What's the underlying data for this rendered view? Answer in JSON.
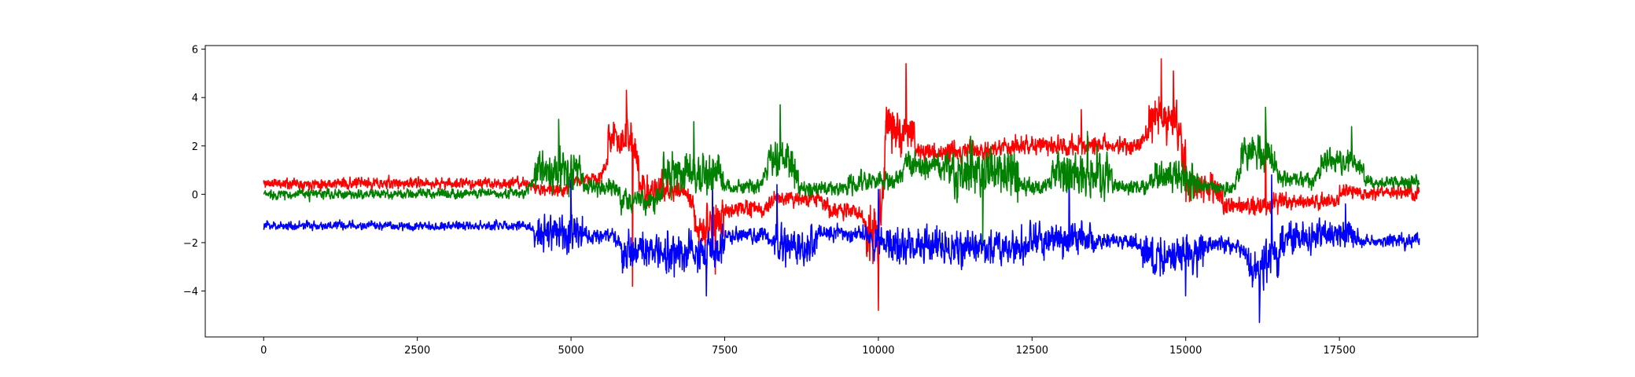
{
  "chart_data": {
    "type": "line",
    "title": "",
    "xlabel": "",
    "ylabel": "",
    "xlim": [
      -950,
      19750
    ],
    "ylim": [
      -5.9,
      6.15
    ],
    "grid": false,
    "legend": "none",
    "x_ticks": [
      {
        "value": 0,
        "label": "0"
      },
      {
        "value": 2500,
        "label": "2500"
      },
      {
        "value": 5000,
        "label": "5000"
      },
      {
        "value": 7500,
        "label": "7500"
      },
      {
        "value": 10000,
        "label": "10000"
      },
      {
        "value": 12500,
        "label": "12500"
      },
      {
        "value": 15000,
        "label": "15000"
      },
      {
        "value": 17500,
        "label": "17500"
      }
    ],
    "y_ticks": [
      {
        "value": -4,
        "label": "−4"
      },
      {
        "value": -2,
        "label": "−2"
      },
      {
        "value": 0,
        "label": "0"
      },
      {
        "value": 2,
        "label": "2"
      },
      {
        "value": 4,
        "label": "4"
      },
      {
        "value": 6,
        "label": "6"
      }
    ],
    "x_range": [
      0,
      18800
    ],
    "series": [
      {
        "color": "#ff0000",
        "seed": 11,
        "segments": [
          {
            "x": [
              0,
              2500
            ],
            "mean": 0.45,
            "noise": 0.28
          },
          {
            "x": [
              2500,
              4400
            ],
            "mean": 0.45,
            "noise": 0.26
          },
          {
            "x": [
              4400,
              5000
            ],
            "mean": 0.2,
            "noise": 0.35
          },
          {
            "x": [
              5000,
              5600
            ],
            "mean": 0.6,
            "noise": 0.3
          },
          {
            "x": [
              5600,
              6100
            ],
            "mean": 2.3,
            "noise": 1.0
          },
          {
            "x": [
              6100,
              6500
            ],
            "mean": 0.2,
            "noise": 0.9
          },
          {
            "x": [
              6500,
              7000
            ],
            "mean": 0.1,
            "noise": 0.5
          },
          {
            "x": [
              7000,
              7500
            ],
            "mean": -1.3,
            "noise": 1.0
          },
          {
            "x": [
              7500,
              8300
            ],
            "mean": -0.6,
            "noise": 0.4
          },
          {
            "x": [
              8300,
              9200
            ],
            "mean": -0.2,
            "noise": 0.4
          },
          {
            "x": [
              9200,
              9800
            ],
            "mean": -0.7,
            "noise": 0.4
          },
          {
            "x": [
              9800,
              10100
            ],
            "mean": -1.5,
            "noise": 1.5
          },
          {
            "x": [
              10100,
              10600
            ],
            "mean": 2.7,
            "noise": 1.1
          },
          {
            "x": [
              10600,
              12000
            ],
            "mean": 1.8,
            "noise": 0.5
          },
          {
            "x": [
              12000,
              14400
            ],
            "mean": 2.0,
            "noise": 0.5
          },
          {
            "x": [
              14400,
              15000
            ],
            "mean": 3.1,
            "noise": 1.1
          },
          {
            "x": [
              15000,
              15600
            ],
            "mean": 0.3,
            "noise": 0.8
          },
          {
            "x": [
              15600,
              16500
            ],
            "mean": -0.5,
            "noise": 0.5
          },
          {
            "x": [
              16500,
              17500
            ],
            "mean": -0.3,
            "noise": 0.4
          },
          {
            "x": [
              17500,
              18800
            ],
            "mean": 0.1,
            "noise": 0.35
          }
        ],
        "peaks": [
          {
            "x": 5900,
            "y": 4.3
          },
          {
            "x": 6000,
            "y": -3.8
          },
          {
            "x": 7350,
            "y": -3.3
          },
          {
            "x": 10000,
            "y": -4.8
          },
          {
            "x": 10450,
            "y": 5.4
          },
          {
            "x": 13300,
            "y": 3.5
          },
          {
            "x": 14600,
            "y": 5.6
          },
          {
            "x": 14800,
            "y": 5.1
          },
          {
            "x": 16300,
            "y": 3.0
          }
        ]
      },
      {
        "color": "#0000ff",
        "seed": 23,
        "segments": [
          {
            "x": [
              0,
              2500
            ],
            "mean": -1.3,
            "noise": 0.22
          },
          {
            "x": [
              2500,
              4400
            ],
            "mean": -1.3,
            "noise": 0.22
          },
          {
            "x": [
              4400,
              5200
            ],
            "mean": -1.6,
            "noise": 0.9
          },
          {
            "x": [
              5200,
              5800
            ],
            "mean": -1.7,
            "noise": 0.35
          },
          {
            "x": [
              5800,
              6500
            ],
            "mean": -2.4,
            "noise": 0.9
          },
          {
            "x": [
              6500,
              7500
            ],
            "mean": -2.5,
            "noise": 1.0
          },
          {
            "x": [
              7500,
              8300
            ],
            "mean": -1.7,
            "noise": 0.4
          },
          {
            "x": [
              8300,
              9000
            ],
            "mean": -2.2,
            "noise": 0.9
          },
          {
            "x": [
              9000,
              9900
            ],
            "mean": -1.6,
            "noise": 0.4
          },
          {
            "x": [
              9900,
              11000
            ],
            "mean": -2.1,
            "noise": 0.9
          },
          {
            "x": [
              11000,
              12400
            ],
            "mean": -2.2,
            "noise": 0.9
          },
          {
            "x": [
              12400,
              13500
            ],
            "mean": -1.9,
            "noise": 0.8
          },
          {
            "x": [
              13500,
              14300
            ],
            "mean": -1.9,
            "noise": 0.4
          },
          {
            "x": [
              14300,
              15300
            ],
            "mean": -2.5,
            "noise": 1.0
          },
          {
            "x": [
              15300,
              16000
            ],
            "mean": -2.1,
            "noise": 0.4
          },
          {
            "x": [
              16000,
              16600
            ],
            "mean": -2.8,
            "noise": 1.1
          },
          {
            "x": [
              16600,
              17800
            ],
            "mean": -1.7,
            "noise": 0.7
          },
          {
            "x": [
              17800,
              18800
            ],
            "mean": -1.9,
            "noise": 0.35
          }
        ],
        "peaks": [
          {
            "x": 5000,
            "y": 0.6
          },
          {
            "x": 7300,
            "y": 0.6
          },
          {
            "x": 7200,
            "y": -4.2
          },
          {
            "x": 8350,
            "y": 0.4
          },
          {
            "x": 10000,
            "y": 0.2
          },
          {
            "x": 13100,
            "y": 0.9
          },
          {
            "x": 15000,
            "y": -4.2
          },
          {
            "x": 16200,
            "y": -5.3
          },
          {
            "x": 16400,
            "y": 0.8
          },
          {
            "x": 17600,
            "y": -0.4
          }
        ]
      },
      {
        "color": "#008000",
        "seed": 37,
        "segments": [
          {
            "x": [
              0,
              2500
            ],
            "mean": 0.0,
            "noise": 0.25
          },
          {
            "x": [
              2500,
              4400
            ],
            "mean": 0.05,
            "noise": 0.25
          },
          {
            "x": [
              4400,
              5200
            ],
            "mean": 1.0,
            "noise": 1.0
          },
          {
            "x": [
              5200,
              5800
            ],
            "mean": 0.3,
            "noise": 0.4
          },
          {
            "x": [
              5800,
              6500
            ],
            "mean": -0.3,
            "noise": 0.6
          },
          {
            "x": [
              6500,
              7500
            ],
            "mean": 0.9,
            "noise": 1.0
          },
          {
            "x": [
              7500,
              8200
            ],
            "mean": 0.3,
            "noise": 0.4
          },
          {
            "x": [
              8200,
              8700
            ],
            "mean": 1.5,
            "noise": 1.0
          },
          {
            "x": [
              8700,
              9500
            ],
            "mean": 0.2,
            "noise": 0.4
          },
          {
            "x": [
              9500,
              10400
            ],
            "mean": 0.5,
            "noise": 0.5
          },
          {
            "x": [
              10400,
              11100
            ],
            "mean": 1.2,
            "noise": 0.7
          },
          {
            "x": [
              11100,
              12300
            ],
            "mean": 0.9,
            "noise": 1.1
          },
          {
            "x": [
              12300,
              12800
            ],
            "mean": 0.3,
            "noise": 0.4
          },
          {
            "x": [
              12800,
              13800
            ],
            "mean": 0.8,
            "noise": 1.1
          },
          {
            "x": [
              13800,
              14500
            ],
            "mean": 0.3,
            "noise": 0.4
          },
          {
            "x": [
              14500,
              15200
            ],
            "mean": 0.7,
            "noise": 0.9
          },
          {
            "x": [
              15200,
              15900
            ],
            "mean": 0.3,
            "noise": 0.4
          },
          {
            "x": [
              15900,
              16500
            ],
            "mean": 1.7,
            "noise": 0.8
          },
          {
            "x": [
              16500,
              17200
            ],
            "mean": 0.6,
            "noise": 0.4
          },
          {
            "x": [
              17200,
              17900
            ],
            "mean": 1.3,
            "noise": 0.6
          },
          {
            "x": [
              17900,
              18800
            ],
            "mean": 0.5,
            "noise": 0.3
          }
        ],
        "peaks": [
          {
            "x": 4800,
            "y": 3.1
          },
          {
            "x": 7000,
            "y": 3.0
          },
          {
            "x": 8400,
            "y": 3.7
          },
          {
            "x": 11500,
            "y": 2.4
          },
          {
            "x": 11700,
            "y": -2.0
          },
          {
            "x": 13400,
            "y": 2.6
          },
          {
            "x": 16300,
            "y": 3.6
          },
          {
            "x": 17700,
            "y": 2.8
          }
        ]
      }
    ]
  }
}
